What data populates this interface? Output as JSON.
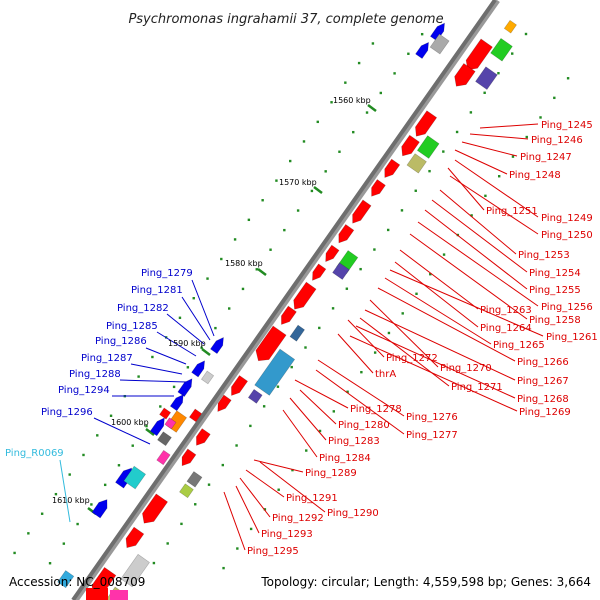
{
  "title": "Psychromonas ingrahamii 37, complete genome",
  "footer": {
    "accession": "Accession: NC_008709",
    "topology": "Topology: circular; Length: 4,559,598 bp; Genes: 3,664"
  },
  "kbp_ticks": [
    "1560 kbp",
    "1570 kbp",
    "1580 kbp",
    "1590 kbp",
    "1600 kbp",
    "1610 kbp"
  ],
  "colors": {
    "backbone": "#777777",
    "gene_red": "#ff0000",
    "gene_blue": "#0000ee",
    "label_red": "#dd0000",
    "label_blue": "#0000cc",
    "label_cyan": "#33bbdd",
    "tick_green": "#228b22"
  },
  "labels_right": [
    "Ping_1245",
    "Ping_1246",
    "Ping_1247",
    "Ping_1248",
    "Ping_1251",
    "Ping_1249",
    "Ping_1250",
    "Ping_1253",
    "Ping_1254",
    "Ping_1255",
    "Ping_1256",
    "Ping_1258",
    "Ping_1263",
    "Ping_1264",
    "Ping_1261",
    "Ping_1265",
    "Ping_1266",
    "Ping_1272",
    "Ping_1270",
    "thrA",
    "Ping_1267",
    "Ping_1271",
    "Ping_1268",
    "Ping_1269",
    "Ping_1278",
    "Ping_1276",
    "Ping_1280",
    "Ping_1277",
    "Ping_1283",
    "Ping_1284",
    "Ping_1289",
    "Ping_1291",
    "Ping_1290",
    "Ping_1292",
    "Ping_1293",
    "Ping_1295"
  ],
  "labels_left": [
    "Ping_1279",
    "Ping_1281",
    "Ping_1282",
    "Ping_1285",
    "Ping_1286",
    "Ping_1287",
    "Ping_1288",
    "Ping_1294",
    "Ping_1296"
  ],
  "labels_rna": [
    "Ping_R0069"
  ]
}
